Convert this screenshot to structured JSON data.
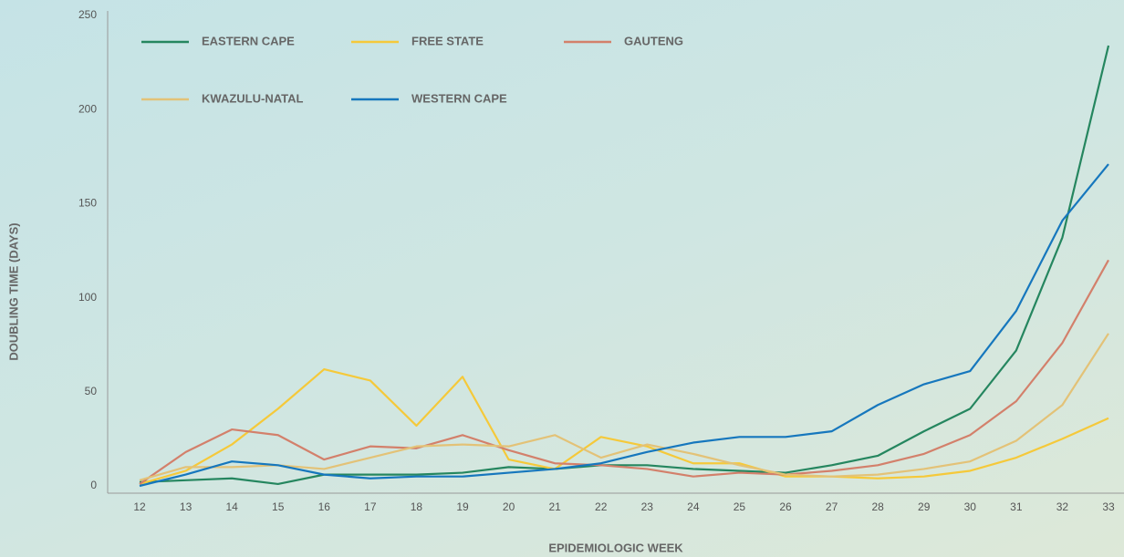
{
  "chart_data": {
    "type": "line",
    "x_label": "EPIDEMIOLOGIC WEEK",
    "y_label": "DOUBLING TIME (DAYS)",
    "categories": [
      "12",
      "13",
      "14",
      "15",
      "16",
      "17",
      "18",
      "19",
      "20",
      "21",
      "22",
      "23",
      "24",
      "25",
      "26",
      "27",
      "28",
      "29",
      "30",
      "31",
      "32",
      "33"
    ],
    "ylim": [
      0,
      250
    ],
    "yticks": [
      0,
      50,
      100,
      150,
      200,
      250
    ],
    "series": [
      {
        "name": "EASTERN CAPE",
        "color": "#25865f",
        "values": [
          2,
          3,
          4,
          1,
          6,
          6,
          6,
          7,
          10,
          9,
          11,
          11,
          9,
          8,
          7,
          11,
          16,
          29,
          41,
          72,
          132,
          234
        ]
      },
      {
        "name": "FREE STATE",
        "color": "#f5c93a",
        "values": [
          1,
          8,
          22,
          41,
          62,
          56,
          32,
          58,
          14,
          9,
          26,
          21,
          12,
          12,
          5,
          5,
          4,
          5,
          8,
          15,
          25,
          36
        ]
      },
      {
        "name": "GAUTENG",
        "color": "#d3806b",
        "values": [
          1,
          18,
          30,
          27,
          14,
          21,
          20,
          27,
          19,
          12,
          11,
          9,
          5,
          7,
          6,
          8,
          11,
          17,
          27,
          45,
          76,
          120
        ]
      },
      {
        "name": "KWAZULU-NATAL",
        "color": "#e3c277",
        "values": [
          3,
          10,
          10,
          11,
          9,
          15,
          21,
          22,
          21,
          27,
          15,
          22,
          17,
          11,
          6,
          5,
          6,
          9,
          13,
          24,
          43,
          81
        ]
      },
      {
        "name": "WESTERN CAPE",
        "color": "#1677bd",
        "values": [
          0,
          6,
          13,
          11,
          6,
          4,
          5,
          5,
          7,
          9,
          12,
          18,
          23,
          26,
          26,
          29,
          43,
          54,
          61,
          93,
          141,
          171
        ]
      }
    ]
  }
}
